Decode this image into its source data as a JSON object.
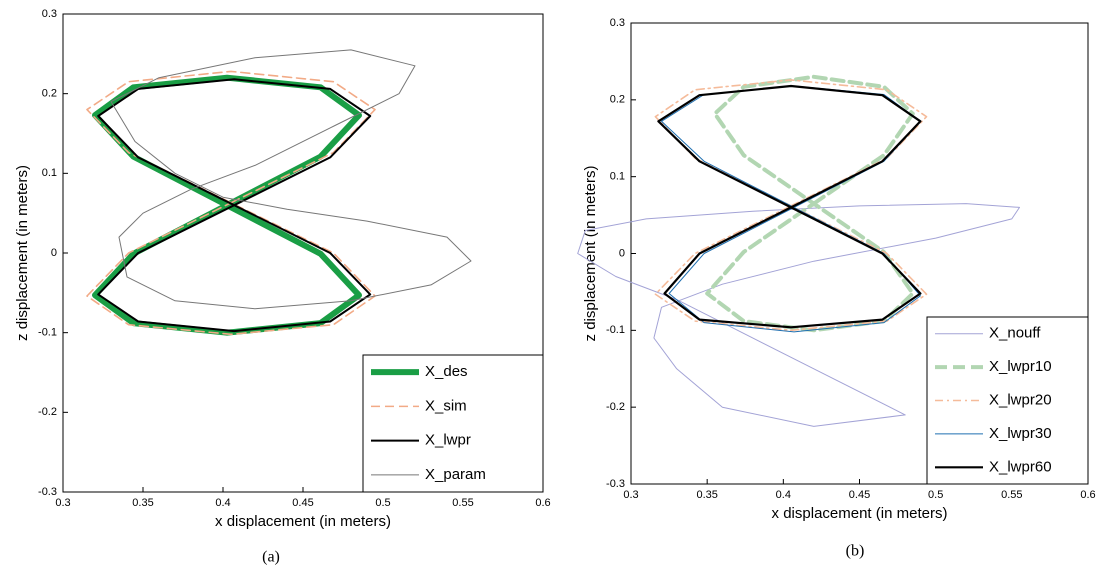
{
  "chart_data": [
    {
      "type": "line",
      "caption": "(a)",
      "xlabel": "x  displacement (in meters)",
      "ylabel": "z displacement (in  meters)",
      "xlim": [
        0.3,
        0.6
      ],
      "ylim": [
        -0.3,
        0.3
      ],
      "xticks": [
        0.3,
        0.35,
        0.4,
        0.45,
        0.5,
        0.55,
        0.6
      ],
      "yticks": [
        -0.3,
        -0.2,
        -0.1,
        0,
        0.1,
        0.2,
        0.3
      ],
      "legend": "lower right",
      "series": [
        {
          "name": "X_des",
          "color": "#1a9e45",
          "x": [
            0.4025,
            0.461,
            0.485,
            0.461,
            0.4025,
            0.344,
            0.32,
            0.344,
            0.4025,
            0.461,
            0.485,
            0.461,
            0.4025,
            0.344,
            0.32,
            0.344,
            0.4025
          ],
          "values": [
            0.06,
            0.121,
            0.173,
            0.208,
            0.22,
            0.208,
            0.173,
            0.121,
            0.06,
            -0.001,
            -0.053,
            -0.088,
            -0.1,
            -0.088,
            -0.053,
            -0.001,
            0.06
          ]
        },
        {
          "name": "X_sim",
          "color": "#f2aa86",
          "x": [
            0.405,
            0.469,
            0.495,
            0.469,
            0.405,
            0.341,
            0.315,
            0.341,
            0.405,
            0.469,
            0.495,
            0.469,
            0.405,
            0.341,
            0.315,
            0.341,
            0.405
          ],
          "values": [
            0.063,
            0.126,
            0.18,
            0.215,
            0.228,
            0.215,
            0.18,
            0.126,
            0.063,
            0.0,
            -0.054,
            -0.09,
            -0.102,
            -0.09,
            -0.054,
            0.0,
            0.063
          ]
        },
        {
          "name": "X_lwpr",
          "color": "#000000",
          "x": [
            0.407,
            0.467,
            0.492,
            0.467,
            0.407,
            0.347,
            0.322,
            0.347,
            0.407,
            0.467,
            0.492,
            0.467,
            0.407,
            0.347,
            0.322,
            0.347,
            0.407
          ],
          "values": [
            0.06,
            0.12,
            0.172,
            0.206,
            0.218,
            0.206,
            0.172,
            0.12,
            0.06,
            0.0,
            -0.052,
            -0.086,
            -0.098,
            -0.086,
            -0.052,
            0.0,
            0.06
          ]
        },
        {
          "name": "X_param",
          "color": "#777777",
          "x": [
            0.33,
            0.36,
            0.42,
            0.48,
            0.52,
            0.51,
            0.47,
            0.42,
            0.38,
            0.35,
            0.335,
            0.34,
            0.37,
            0.42,
            0.48,
            0.53,
            0.555,
            0.54,
            0.49,
            0.44,
            0.4,
            0.37,
            0.345,
            0.33
          ],
          "values": [
            0.19,
            0.22,
            0.245,
            0.255,
            0.235,
            0.2,
            0.16,
            0.11,
            0.08,
            0.05,
            0.02,
            -0.03,
            -0.06,
            -0.07,
            -0.06,
            -0.04,
            -0.01,
            0.02,
            0.04,
            0.055,
            0.07,
            0.1,
            0.14,
            0.19
          ]
        }
      ]
    },
    {
      "type": "line",
      "caption": "(b)",
      "xlabel": "x  displacement (in meters)",
      "ylabel": "z displacement (in  meters)",
      "xlim": [
        0.3,
        0.6
      ],
      "ylim": [
        -0.3,
        0.3
      ],
      "xticks": [
        0.3,
        0.35,
        0.4,
        0.45,
        0.5,
        0.55,
        0.6
      ],
      "yticks": [
        -0.3,
        -0.2,
        -0.1,
        0,
        0.1,
        0.2,
        0.3
      ],
      "legend": "lower right",
      "series": [
        {
          "name": "X_nouff",
          "color": "#a3a3d6",
          "x": [
            0.48,
            0.42,
            0.36,
            0.33,
            0.315,
            0.32,
            0.36,
            0.42,
            0.5,
            0.55,
            0.555,
            0.52,
            0.45,
            0.38,
            0.31,
            0.27,
            0.265,
            0.29,
            0.33,
            0.37,
            0.42,
            0.48
          ],
          "values": [
            -0.21,
            -0.225,
            -0.2,
            -0.15,
            -0.11,
            -0.07,
            -0.04,
            -0.01,
            0.02,
            0.045,
            0.06,
            0.065,
            0.062,
            0.055,
            0.045,
            0.03,
            0.0,
            -0.03,
            -0.06,
            -0.1,
            -0.15,
            -0.21
          ]
        },
        {
          "name": "X_lwpr10",
          "color": "#b2d6b2",
          "x": [
            0.42,
            0.466,
            0.485,
            0.466,
            0.42,
            0.374,
            0.355,
            0.374,
            0.42,
            0.466,
            0.485,
            0.466,
            0.42,
            0.374,
            0.35,
            0.374,
            0.42
          ],
          "values": [
            0.065,
            0.128,
            0.182,
            0.217,
            0.23,
            0.217,
            0.182,
            0.128,
            0.065,
            0.002,
            -0.052,
            -0.088,
            -0.1,
            -0.088,
            -0.052,
            0.002,
            0.065
          ]
        },
        {
          "name": "X_lwpr20",
          "color": "#f5bb9a",
          "x": [
            0.405,
            0.468,
            0.494,
            0.468,
            0.405,
            0.342,
            0.316,
            0.342,
            0.405,
            0.468,
            0.494,
            0.468,
            0.405,
            0.342,
            0.316,
            0.342,
            0.405
          ],
          "values": [
            0.062,
            0.124,
            0.178,
            0.213,
            0.226,
            0.213,
            0.178,
            0.124,
            0.062,
            0.0,
            -0.053,
            -0.088,
            -0.1,
            -0.088,
            -0.053,
            0.0,
            0.062
          ]
        },
        {
          "name": "X_lwpr30",
          "color": "#1f6fb0",
          "x": [
            0.407,
            0.466,
            0.49,
            0.466,
            0.407,
            0.348,
            0.32,
            0.348,
            0.407,
            0.466,
            0.49,
            0.466,
            0.407,
            0.348,
            0.325,
            0.348,
            0.407
          ],
          "values": [
            0.06,
            0.12,
            0.172,
            0.207,
            0.218,
            0.207,
            0.172,
            0.12,
            0.06,
            0.0,
            -0.055,
            -0.09,
            -0.102,
            -0.09,
            -0.052,
            0.0,
            0.06
          ]
        },
        {
          "name": "X_lwpr60",
          "color": "#000000",
          "x": [
            0.405,
            0.465,
            0.49,
            0.465,
            0.405,
            0.345,
            0.318,
            0.345,
            0.405,
            0.465,
            0.49,
            0.465,
            0.405,
            0.345,
            0.322,
            0.345,
            0.405
          ],
          "values": [
            0.06,
            0.12,
            0.172,
            0.206,
            0.218,
            0.206,
            0.172,
            0.12,
            0.06,
            0.0,
            -0.052,
            -0.086,
            -0.096,
            -0.086,
            -0.052,
            0.0,
            0.06
          ]
        }
      ]
    }
  ]
}
